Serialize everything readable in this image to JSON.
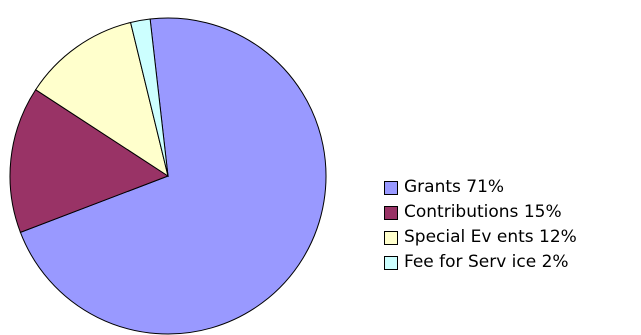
{
  "chart_data": {
    "type": "pie",
    "title": "",
    "start_angle_deg": 96.5,
    "direction": "clockwise",
    "legend_position": "right",
    "slices": [
      {
        "label": "Grants 71%",
        "value": 71,
        "color": "#9999ff"
      },
      {
        "label": "Contributions 15%",
        "value": 15,
        "color": "#993366"
      },
      {
        "label": "Special Ev ents 12%",
        "value": 12,
        "color": "#ffffcc"
      },
      {
        "label": "Fee for Serv ice 2%",
        "value": 2,
        "color": "#ccffff"
      }
    ]
  }
}
